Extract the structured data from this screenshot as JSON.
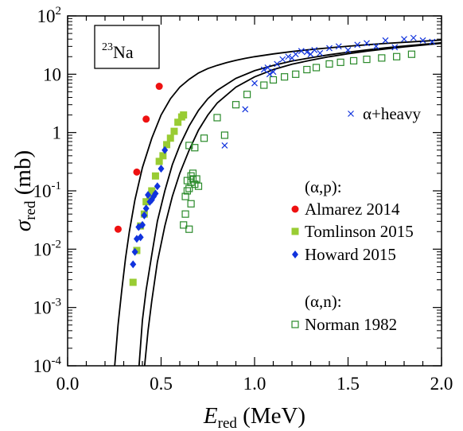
{
  "chart_data": {
    "type": "scatter",
    "xlabel": {
      "main": "E",
      "sub": "red",
      "unit": " (MeV)"
    },
    "ylabel": {
      "main": "σ",
      "sub": "red",
      "unit": " (mb)"
    },
    "xlim": [
      0.0,
      2.0
    ],
    "ylim": [
      0.0001,
      100
    ],
    "yscale": "log",
    "x_ticks": [
      {
        "v": 0.0,
        "label": "0.0"
      },
      {
        "v": 0.5,
        "label": "0.5"
      },
      {
        "v": 1.0,
        "label": "1.0"
      },
      {
        "v": 1.5,
        "label": "1.5"
      },
      {
        "v": 2.0,
        "label": "2.0"
      }
    ],
    "y_ticks": [
      {
        "v": 100,
        "base": "10",
        "exp": "2",
        "label": ""
      },
      {
        "v": 10,
        "base": "",
        "exp": "",
        "label": "10"
      },
      {
        "v": 1,
        "base": "",
        "exp": "",
        "label": "1"
      },
      {
        "v": 0.1,
        "base": "10",
        "exp": "-1",
        "label": ""
      },
      {
        "v": 0.01,
        "base": "10",
        "exp": "-2",
        "label": ""
      },
      {
        "v": 0.001,
        "base": "10",
        "exp": "-3",
        "label": ""
      },
      {
        "v": 0.0001,
        "base": "10",
        "exp": "-4",
        "label": ""
      }
    ],
    "grid": false,
    "nucleus_label": {
      "mass": "23",
      "symbol": "Na"
    },
    "legend_groups": [
      {
        "title": "(α,p):",
        "entries": [
          "Almarez 2014",
          "Tomlinson 2015",
          "Howard 2015"
        ]
      },
      {
        "title": "(α,n):",
        "entries": [
          "Norman 1982"
        ]
      }
    ],
    "series": [
      {
        "name": "Almarez 2014",
        "marker": "circle",
        "color": "#ee1111",
        "x": [
          0.27,
          0.37,
          0.42,
          0.49
        ],
        "y": [
          0.022,
          0.21,
          1.7,
          6.2
        ]
      },
      {
        "name": "Tomlinson 2015",
        "marker": "filled-square",
        "color": "#99cc33",
        "x": [
          0.35,
          0.37,
          0.39,
          0.41,
          0.42,
          0.44,
          0.45,
          0.47,
          0.49,
          0.51,
          0.53,
          0.55,
          0.57,
          0.59,
          0.61,
          0.62
        ],
        "y": [
          0.0027,
          0.0095,
          0.025,
          0.04,
          0.065,
          0.075,
          0.1,
          0.18,
          0.32,
          0.4,
          0.62,
          0.8,
          1.05,
          1.5,
          1.85,
          2.0
        ]
      },
      {
        "name": "Howard 2015",
        "marker": "diamond",
        "color": "#1133dd",
        "x": [
          0.35,
          0.36,
          0.37,
          0.38,
          0.39,
          0.4,
          0.41,
          0.42,
          0.43,
          0.44,
          0.45,
          0.46,
          0.47,
          0.48,
          0.5,
          0.52
        ],
        "y": [
          0.0055,
          0.009,
          0.015,
          0.024,
          0.016,
          0.026,
          0.038,
          0.05,
          0.085,
          0.065,
          0.07,
          0.08,
          0.09,
          0.12,
          0.24,
          0.5
        ]
      },
      {
        "name": "Norman 1982",
        "marker": "open-square",
        "color": "#2a8a2a",
        "x": [
          0.62,
          0.63,
          0.63,
          0.64,
          0.64,
          0.65,
          0.65,
          0.65,
          0.66,
          0.66,
          0.66,
          0.67,
          0.67,
          0.68,
          0.68,
          0.69,
          0.7,
          0.73,
          0.8,
          0.84,
          0.9,
          0.96,
          1.05,
          1.1,
          1.16,
          1.22,
          1.28,
          1.33,
          1.4,
          1.46,
          1.53,
          1.6,
          1.68,
          1.76,
          1.84
        ],
        "y": [
          0.026,
          0.04,
          0.08,
          0.1,
          0.15,
          0.6,
          0.022,
          0.11,
          0.18,
          0.14,
          0.06,
          0.16,
          0.2,
          0.13,
          0.55,
          0.16,
          0.12,
          0.8,
          1.8,
          0.9,
          3.0,
          4.5,
          6.5,
          8.0,
          9.0,
          10.0,
          12.0,
          13.0,
          15.0,
          16.0,
          17.0,
          18.0,
          19.0,
          20.0,
          22.0
        ]
      },
      {
        "name": "α+heavy",
        "marker": "x",
        "color": "#1133dd",
        "x": [
          0.84,
          0.95,
          1.0,
          1.05,
          1.07,
          1.08,
          1.1,
          1.12,
          1.15,
          1.18,
          1.2,
          1.22,
          1.25,
          1.28,
          1.3,
          1.32,
          1.35,
          1.4,
          1.45,
          1.5,
          1.55,
          1.6,
          1.65,
          1.7,
          1.75,
          1.8,
          1.85,
          1.9,
          1.95
        ],
        "y": [
          0.6,
          2.5,
          7.0,
          12.0,
          13.0,
          10.0,
          11.0,
          15.0,
          18.0,
          20.0,
          19.0,
          22.0,
          25.0,
          24.0,
          22.0,
          26.0,
          23.0,
          28.0,
          30.0,
          26.0,
          32.0,
          34.0,
          30.0,
          38.0,
          29.0,
          40.0,
          42.0,
          38.0,
          36.0
        ]
      }
    ],
    "curves": [
      {
        "x": [
          0.252,
          0.27,
          0.29,
          0.31,
          0.33,
          0.36,
          0.4,
          0.45,
          0.5,
          0.55,
          0.6,
          0.65,
          0.7,
          0.75,
          0.8,
          0.85,
          0.9,
          0.95,
          1.0,
          1.1,
          1.2,
          1.3,
          1.4,
          1.5,
          1.6,
          1.7,
          1.8,
          1.9,
          2.0
        ],
        "y": [
          0.0001,
          0.0005,
          0.002,
          0.007,
          0.02,
          0.07,
          0.25,
          0.8,
          2.0,
          3.8,
          6.0,
          8.2,
          10.5,
          12.5,
          14.2,
          15.8,
          17.3,
          18.7,
          20.0,
          22.3,
          24.5,
          26.5,
          28.4,
          30.2,
          32.0,
          33.7,
          35.3,
          36.9,
          38.5
        ]
      },
      {
        "x": [
          0.382,
          0.4,
          0.42,
          0.45,
          0.48,
          0.52,
          0.56,
          0.6,
          0.65,
          0.7,
          0.75,
          0.8,
          0.9,
          1.0,
          1.1,
          1.2,
          1.3,
          1.4,
          1.5,
          1.6,
          1.7,
          1.8,
          1.9,
          2.0
        ],
        "y": [
          0.0001,
          0.0006,
          0.002,
          0.008,
          0.03,
          0.1,
          0.28,
          0.6,
          1.3,
          2.4,
          3.8,
          5.3,
          8.5,
          11.5,
          14.2,
          16.8,
          19.2,
          21.6,
          23.9,
          26.1,
          28.3,
          30.4,
          32.5,
          34.6
        ]
      },
      {
        "x": [
          0.412,
          0.43,
          0.45,
          0.48,
          0.52,
          0.56,
          0.6,
          0.65,
          0.7,
          0.75,
          0.8,
          0.9,
          1.0,
          1.1,
          1.2,
          1.3,
          1.4,
          1.5,
          1.6,
          1.7,
          1.8,
          1.9,
          2.0
        ],
        "y": [
          0.0001,
          0.0004,
          0.0013,
          0.006,
          0.025,
          0.08,
          0.2,
          0.5,
          1.1,
          2.0,
          3.2,
          6.0,
          9.0,
          12.0,
          14.8,
          17.4,
          20.0,
          22.4,
          24.8,
          27.1,
          29.4,
          31.6,
          33.8
        ]
      }
    ]
  }
}
